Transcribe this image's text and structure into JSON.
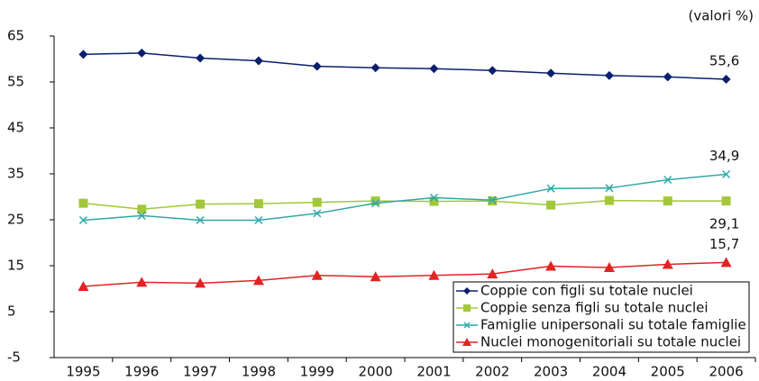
{
  "chart_data": {
    "type": "line",
    "annotation": "(valori %)",
    "categories": [
      "1995",
      "1996",
      "1997",
      "1998",
      "1999",
      "2000",
      "2001",
      "2002",
      "2003",
      "2004",
      "2005",
      "2006"
    ],
    "ylim": [
      -5,
      65
    ],
    "yticks": [
      -5,
      5,
      15,
      25,
      35,
      45,
      55,
      65
    ],
    "grid": false,
    "legend": "bottom-right",
    "series": [
      {
        "name": "Coppie con figli su totale nuclei",
        "color": "#0b1f6e",
        "marker": "diamond",
        "values": [
          61.0,
          61.3,
          60.2,
          59.6,
          58.4,
          58.1,
          57.9,
          57.5,
          56.9,
          56.4,
          56.1,
          55.6
        ],
        "value_labels": [
          null,
          null,
          null,
          null,
          null,
          null,
          null,
          null,
          null,
          null,
          null,
          "55,6"
        ]
      },
      {
        "name": "Coppie senza figli su totale nuclei",
        "color": "#a2c83a",
        "marker": "square",
        "values": [
          28.6,
          27.3,
          28.4,
          28.5,
          28.8,
          29.1,
          29.0,
          29.1,
          28.2,
          29.2,
          29.1,
          29.1
        ],
        "value_labels": [
          null,
          null,
          null,
          null,
          null,
          null,
          null,
          null,
          null,
          null,
          null,
          "29,1"
        ]
      },
      {
        "name": "Famiglie unipersonali su totale famiglie",
        "color": "#2fa8a8",
        "marker": "x",
        "values": [
          24.9,
          25.9,
          24.9,
          24.9,
          26.4,
          28.6,
          29.8,
          29.3,
          31.8,
          31.9,
          33.7,
          34.9
        ],
        "value_labels": [
          null,
          null,
          null,
          null,
          null,
          null,
          null,
          null,
          null,
          null,
          null,
          "34,9"
        ]
      },
      {
        "name": "Nuclei monogenitoriali su totale nuclei",
        "color": "#e02424",
        "marker": "triangle",
        "values": [
          10.5,
          11.4,
          11.2,
          11.8,
          12.9,
          12.6,
          12.9,
          13.2,
          14.9,
          14.6,
          15.3,
          15.7
        ],
        "value_labels": [
          null,
          null,
          null,
          null,
          null,
          null,
          null,
          null,
          null,
          null,
          null,
          "15,7"
        ]
      }
    ]
  }
}
